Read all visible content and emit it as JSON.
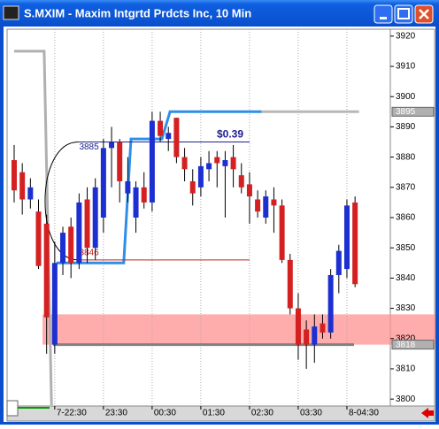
{
  "chart_data": {
    "type": "candlestick",
    "title": "S.MXIM - Maxim Intgrtd Prdcts Inc, 10 Min",
    "categories": [
      null,
      null,
      null,
      null,
      null,
      "7-22:30",
      null,
      null,
      null,
      null,
      null,
      "23:30",
      null,
      null,
      null,
      null,
      null,
      "00:30",
      null,
      null,
      null,
      null,
      null,
      "01:30",
      null,
      null,
      null,
      null,
      null,
      "02:30",
      null,
      null,
      null,
      null,
      null,
      "03:30",
      null,
      null,
      null,
      null,
      null,
      "8-04:30",
      null
    ],
    "open": [
      3879,
      3875,
      3866,
      3862,
      3858,
      3818,
      3845,
      3857,
      3845,
      3866,
      3850,
      3860,
      3883,
      3885,
      3868,
      3860,
      3870,
      3865,
      3892,
      3886,
      3893,
      3880,
      3872,
      3870,
      3876,
      3880,
      3877,
      3880,
      3874,
      3871,
      3866,
      3860,
      3866,
      3864,
      3846,
      3830,
      3823,
      3818,
      3825,
      3822,
      3841,
      3843,
      3865
    ],
    "high": [
      3884,
      3878,
      3873,
      3866,
      3861,
      3852,
      3857,
      3860,
      3868,
      3870,
      3873,
      3886,
      3890,
      3886,
      3880,
      3872,
      3875,
      3895,
      3895,
      3890,
      3893,
      3883,
      3876,
      3880,
      3882,
      3882,
      3882,
      3884,
      3878,
      3875,
      3869,
      3869,
      3870,
      3866,
      3848,
      3835,
      3826,
      3828,
      3828,
      3843,
      3851,
      3866,
      3867
    ],
    "low": [
      3865,
      3861,
      3863,
      3843,
      3815,
      3815,
      3841,
      3840,
      3843,
      3845,
      3846,
      3855,
      3870,
      3865,
      3865,
      3855,
      3863,
      3862,
      3885,
      3882,
      3878,
      3872,
      3864,
      3867,
      3872,
      3870,
      3860,
      3870,
      3868,
      3858,
      3860,
      3858,
      3855,
      3845,
      3828,
      3813,
      3810,
      3812,
      3820,
      3820,
      3835,
      3840,
      3837
    ],
    "close": [
      3869,
      3866,
      3870,
      3844,
      3827,
      3845,
      3855,
      3845,
      3865,
      3850,
      3870,
      3883,
      3885,
      3872,
      3872,
      3870,
      3865,
      3892,
      3887,
      3888,
      3880,
      3876,
      3868,
      3877,
      3878,
      3878,
      3879,
      3876,
      3870,
      3867,
      3862,
      3867,
      3864,
      3846,
      3830,
      3818,
      3818,
      3824,
      3822,
      3841,
      3849,
      3864,
      3838
    ],
    "up_color": "#1c2fd0",
    "down_color": "#d42020",
    "ylim": [
      3798,
      3922
    ],
    "yticks": [
      3800,
      3810,
      3820,
      3830,
      3840,
      3850,
      3860,
      3870,
      3880,
      3890,
      3900,
      3910,
      3920
    ],
    "grid": true,
    "lines": [
      {
        "color": "#b0b0b0",
        "x": [
          0,
          3.7,
          4.6
        ],
        "values": [
          3915,
          3915,
          3798
        ]
      },
      {
        "color": "#2f8fe8",
        "x": [
          5.2,
          13.5,
          14.4,
          18.2,
          19.2,
          30.5
        ],
        "values": [
          3845,
          3845,
          3886,
          3886,
          3895,
          3895
        ]
      },
      {
        "color": "#b8b8b8",
        "x": [
          30.5,
          42.5
        ],
        "values": [
          3895,
          3895
        ]
      }
    ],
    "zone": {
      "values": [
        3818,
        3828
      ],
      "color": "#ff9090"
    },
    "support": {
      "value": 3818,
      "color": "#808080"
    },
    "measure": {
      "top": 3885,
      "bottom": 3846,
      "label": "$0.39"
    },
    "price_markers": [
      3895,
      3818
    ]
  }
}
